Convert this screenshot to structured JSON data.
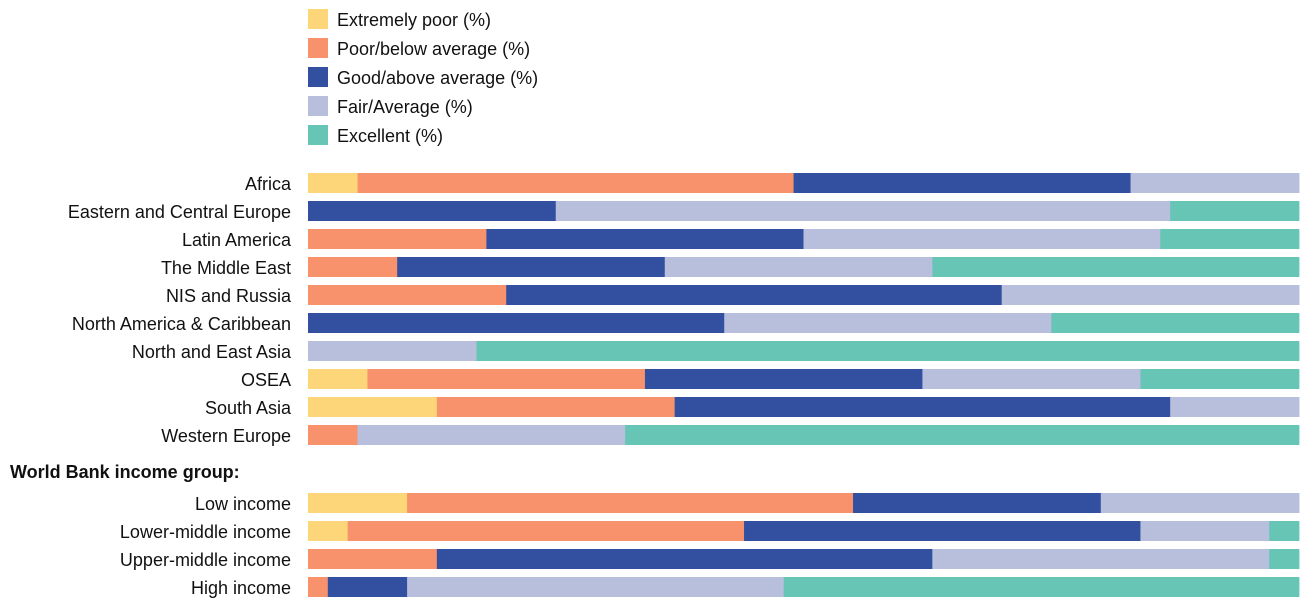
{
  "chart_data": {
    "type": "bar",
    "orientation": "horizontal",
    "stacked": true,
    "normalized": true,
    "xlim": [
      0,
      100
    ],
    "grid": false,
    "legend_position": "top-left",
    "groups": [
      {
        "label": "",
        "categories": [
          "Africa",
          "Eastern and Central Europe",
          "Latin America",
          "The Middle East",
          "NIS and Russia",
          "North America & Caribbean",
          "North and East Asia",
          "OSEA",
          "South Asia",
          "Western Europe"
        ]
      },
      {
        "label": "World Bank income group:",
        "categories": [
          "Low income",
          "Lower-middle income",
          "Upper-middle income",
          "High income"
        ]
      }
    ],
    "series": [
      {
        "name": "Extremely poor (%)",
        "color": "#fdd67a",
        "values": [
          5,
          0,
          0,
          0,
          0,
          0,
          0,
          6,
          13,
          0,
          10,
          4,
          0,
          0
        ]
      },
      {
        "name": "Poor/below average (%)",
        "color": "#f7926c",
        "values": [
          44,
          0,
          18,
          9,
          20,
          0,
          0,
          28,
          24,
          5,
          45,
          40,
          13,
          2
        ]
      },
      {
        "name": "Good/above average (%)",
        "color": "#334fa0",
        "values": [
          34,
          25,
          32,
          27,
          50,
          42,
          0,
          28,
          50,
          0,
          25,
          40,
          50,
          8
        ]
      },
      {
        "name": "Fair/Average (%)",
        "color": "#b8bfdd",
        "values": [
          17,
          62,
          36,
          27,
          30,
          33,
          17,
          22,
          13,
          27,
          20,
          13,
          34,
          38
        ]
      },
      {
        "name": "Excellent (%)",
        "color": "#67c5b6",
        "values": [
          0,
          13,
          14,
          37,
          0,
          25,
          83,
          16,
          0,
          68,
          0,
          3,
          3,
          52
        ]
      }
    ]
  }
}
